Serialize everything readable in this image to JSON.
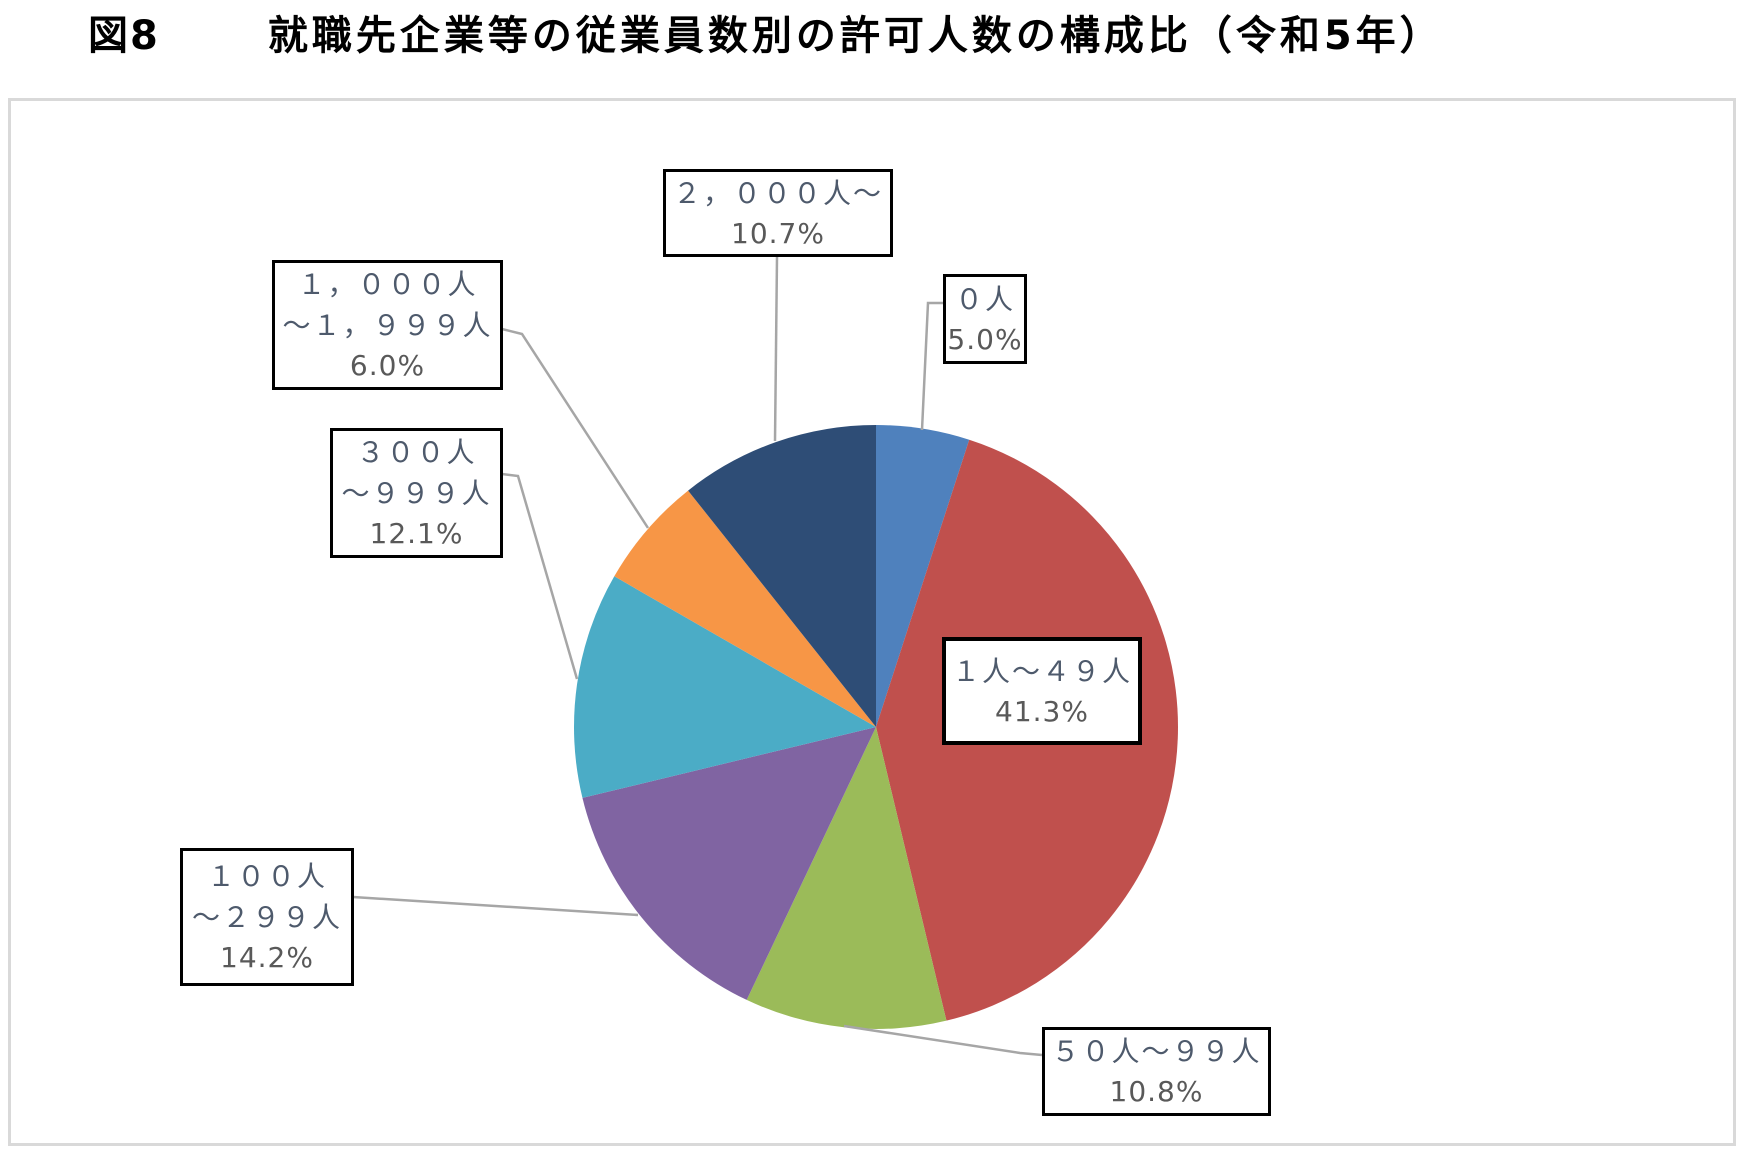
{
  "title": {
    "figure_no": "図8",
    "text": "就職先企業等の従業員数別の許可人数の構成比（令和5年）"
  },
  "chart_data": {
    "type": "pie",
    "title": "図8 就職先企業等の従業員数別の許可人数の構成比（令和5年）",
    "unit": "%",
    "start_angle": "top (12 o'clock), clockwise",
    "legend": "none (boxed data labels with gray leader lines)",
    "categories": [
      "0人",
      "1人～49人",
      "50人～99人",
      "100人～299人",
      "300人～999人",
      "1,000人～1,999人",
      "2,000人～"
    ],
    "values": [
      5.0,
      41.3,
      10.8,
      14.2,
      12.1,
      6.0,
      10.7
    ],
    "segments": [
      {
        "id": "zero",
        "lines": [
          "０人"
        ],
        "pct_label": "5.0%",
        "value": 5.0,
        "color": "#4f81bd"
      },
      {
        "id": "s1_49",
        "lines": [
          "１人～４９人"
        ],
        "pct_label": "41.3%",
        "value": 41.3,
        "color": "#c0504d"
      },
      {
        "id": "s50",
        "lines": [
          "５０人～９９人"
        ],
        "pct_label": "10.8%",
        "value": 10.8,
        "color": "#9bbb59"
      },
      {
        "id": "s100",
        "lines": [
          "１００人",
          "～２９９人"
        ],
        "pct_label": "14.2%",
        "value": 14.2,
        "color": "#8064a2"
      },
      {
        "id": "s300",
        "lines": [
          "３００人",
          "～９９９人"
        ],
        "pct_label": "12.1%",
        "value": 12.1,
        "color": "#4bacc6"
      },
      {
        "id": "s1000",
        "lines": [
          "１，０００人",
          "～１，９９９人"
        ],
        "pct_label": "6.0%",
        "value": 6.0,
        "color": "#f79646"
      },
      {
        "id": "s2000",
        "lines": [
          "２，０００人～"
        ],
        "pct_label": "10.7%",
        "value": 10.7,
        "color": "#2e4d76"
      }
    ],
    "colors": {
      "leader_line": "#a6a6a6",
      "frame_border": "#d9d9d9",
      "label_text": "#4e5a6c",
      "pct_text": "#595959"
    }
  }
}
